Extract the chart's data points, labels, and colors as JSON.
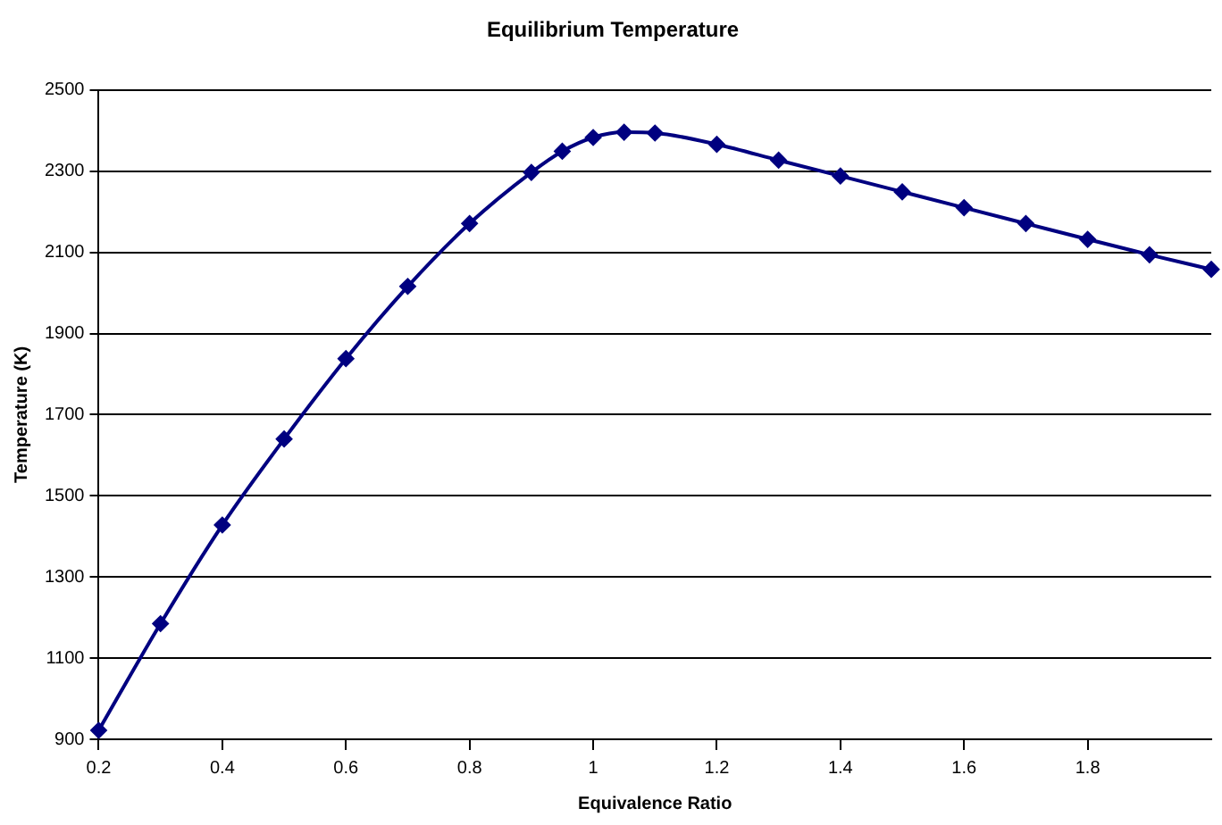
{
  "chart_data": {
    "type": "line",
    "title": "Equilibrium Temperature",
    "xlabel": "Equivalence Ratio",
    "ylabel": "Temperature (K)",
    "x": [
      0.2,
      0.3,
      0.4,
      0.5,
      0.6,
      0.7,
      0.8,
      0.9,
      0.95,
      1.0,
      1.05,
      1.1,
      1.2,
      1.3,
      1.4,
      1.5,
      1.6,
      1.7,
      1.8,
      1.9,
      2.0
    ],
    "series": [
      {
        "color": "#000080",
        "values": [
          922,
          1185,
          1428,
          1640,
          1838,
          2016,
          2171,
          2297,
          2349,
          2383,
          2396,
          2394,
          2366,
          2327,
          2288,
          2249,
          2210,
          2171,
          2132,
          2094,
          2058
        ]
      }
    ],
    "xlim": [
      0.2,
      2.0
    ],
    "xticks": [
      0.2,
      0.4,
      0.6,
      0.8,
      1,
      1.2,
      1.4,
      1.6,
      1.8
    ],
    "ylim": [
      900,
      2500
    ],
    "yticks": [
      900,
      1100,
      1300,
      1500,
      1700,
      1900,
      2100,
      2300,
      2500
    ],
    "grid": "y",
    "legend": false,
    "marker": "diamond",
    "line_style": "solid"
  }
}
